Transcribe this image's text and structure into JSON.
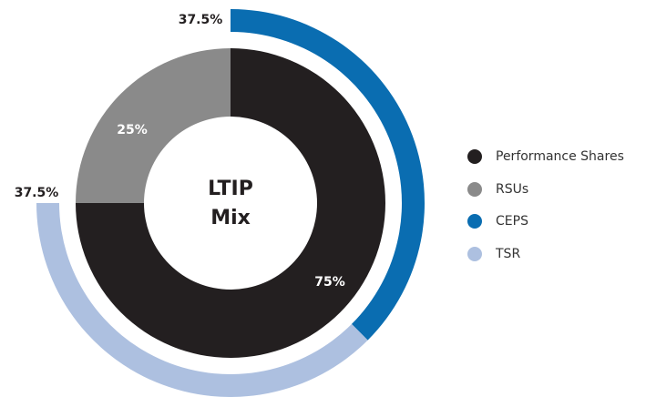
{
  "chart_data": {
    "type": "nested-donut",
    "title": [
      "LTIP",
      "Mix"
    ],
    "rings": [
      {
        "categories": [
          "Performance Shares",
          "RSUs"
        ],
        "values": [
          75,
          25
        ],
        "value_labels": [
          "75%",
          "25%"
        ],
        "colors": [
          "#231f20",
          "#8a8a8a"
        ]
      },
      {
        "categories": [
          "CEPS",
          "TSR"
        ],
        "values": [
          37.5,
          37.5
        ],
        "value_labels": [
          "37.5%",
          "37.5%"
        ],
        "colors": [
          "#0a6db1",
          "#adc0e0"
        ]
      }
    ]
  }
}
